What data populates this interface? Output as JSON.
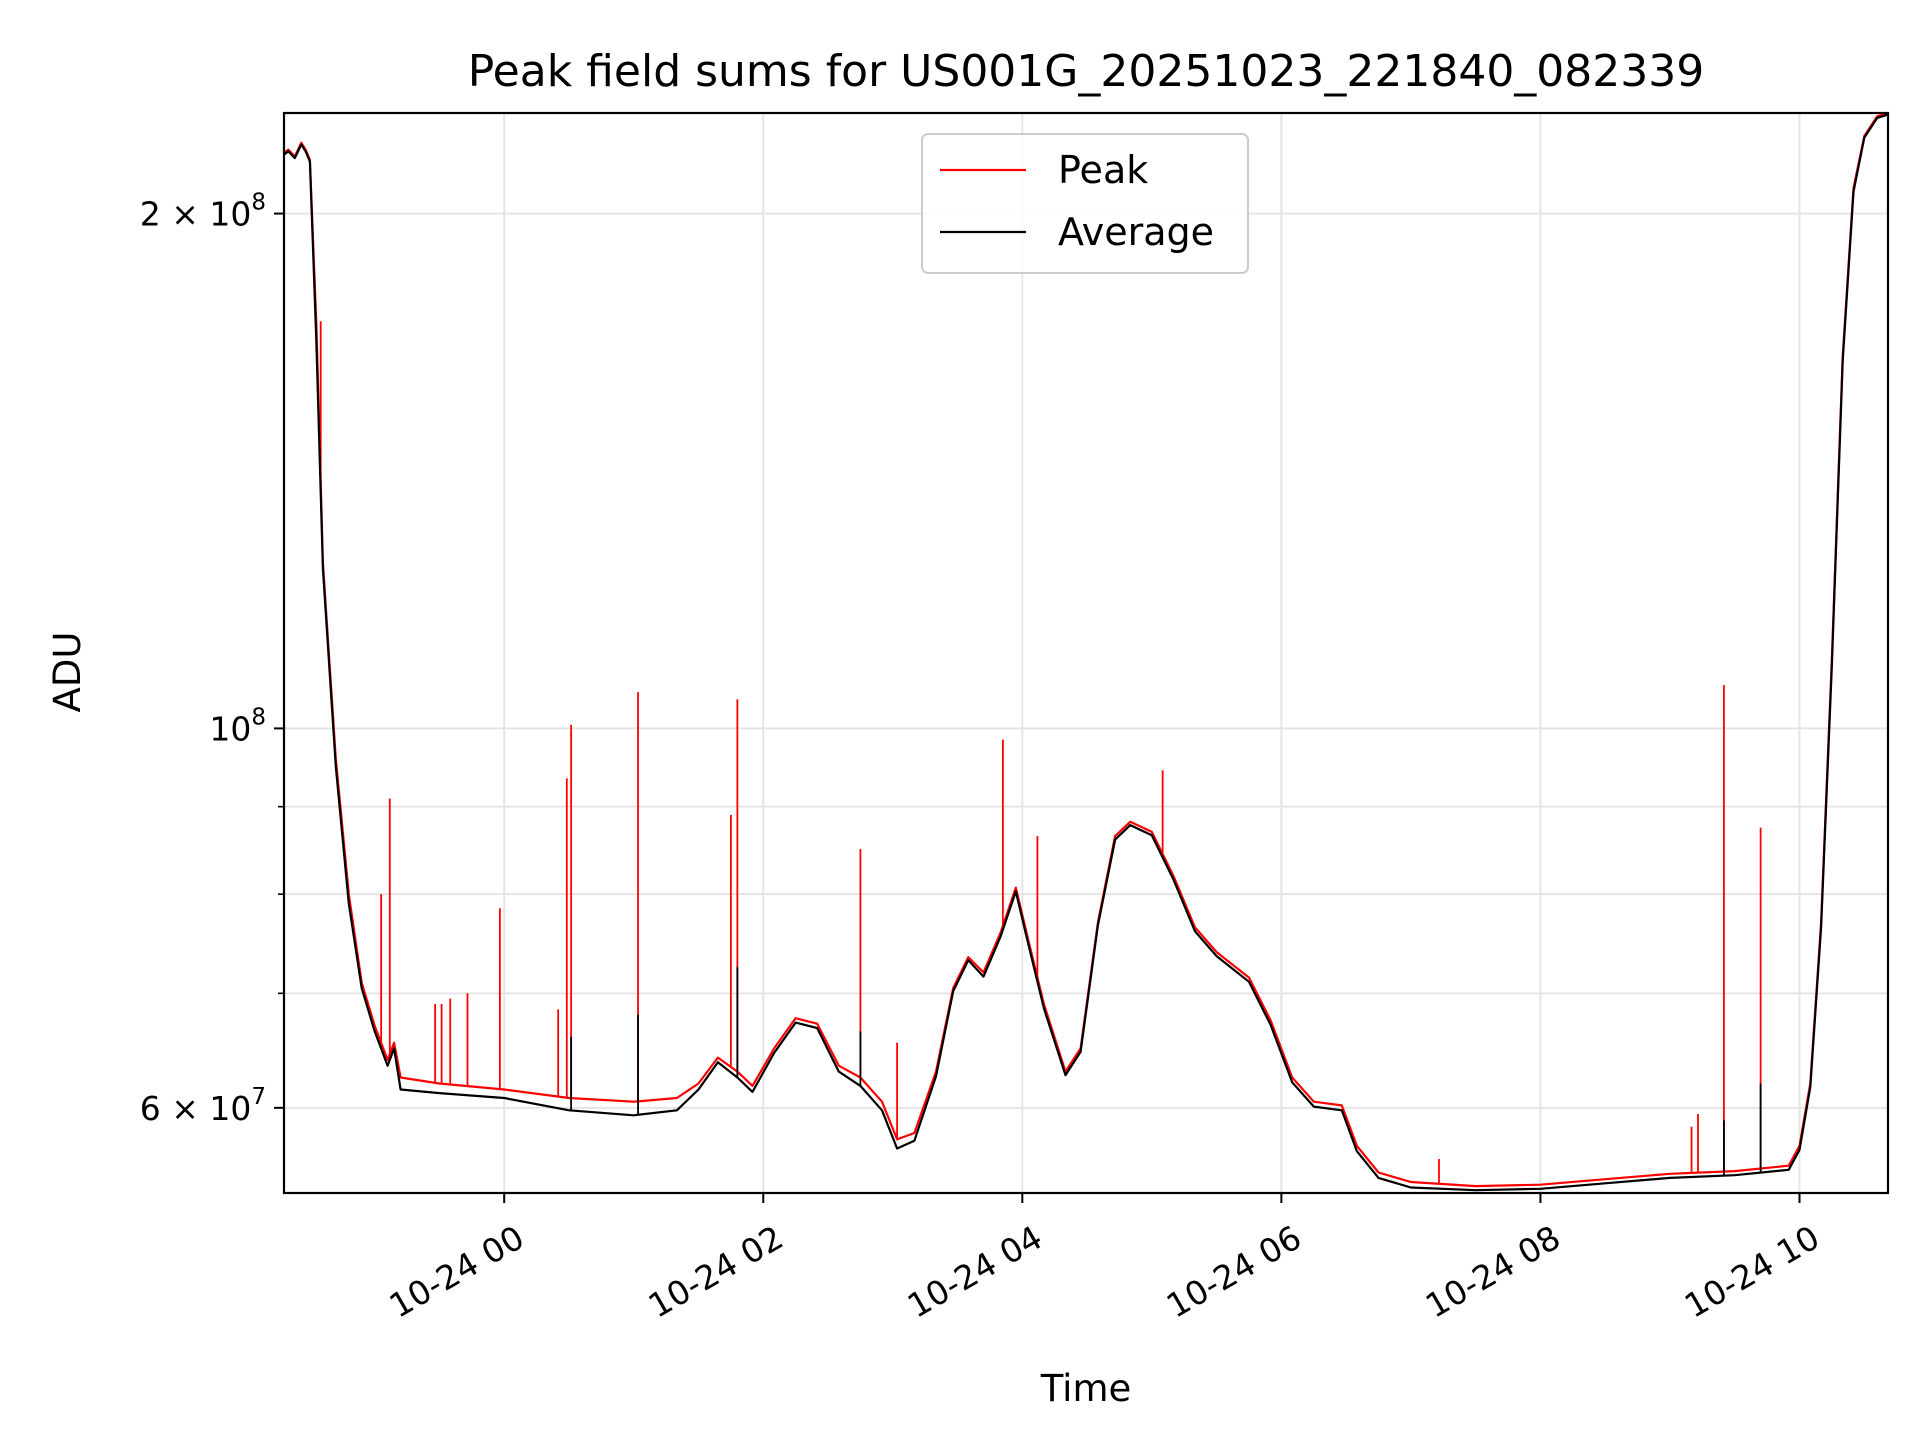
{
  "chart_data": {
    "type": "line",
    "title": "Peak field sums for US001G_20251023_221840_082339",
    "xlabel": "Time",
    "ylabel": "ADU",
    "x_type": "datetime",
    "xlim": [
      "2025-10-23 22:18",
      "2025-10-24 10:41"
    ],
    "ylim": [
      53500000,
      229000000
    ],
    "y_scale": "log",
    "grid": true,
    "legend_position": "upper center",
    "x_ticks": [
      {
        "value": "2025-10-24 00:00",
        "label": "10-24 00"
      },
      {
        "value": "2025-10-24 02:00",
        "label": "10-24 02"
      },
      {
        "value": "2025-10-24 04:00",
        "label": "10-24 04"
      },
      {
        "value": "2025-10-24 06:00",
        "label": "10-24 06"
      },
      {
        "value": "2025-10-24 08:00",
        "label": "10-24 08"
      },
      {
        "value": "2025-10-24 10:00",
        "label": "10-24 10"
      }
    ],
    "y_ticks_major": [
      {
        "value": 60000000,
        "label_base": "6 × 10",
        "label_exp": "7"
      },
      {
        "value": 100000000,
        "label_base": "10",
        "label_exp": "8"
      },
      {
        "value": 200000000,
        "label_base": "2 × 10",
        "label_exp": "8"
      }
    ],
    "y_minor_gridlines": [
      70000000,
      80000000,
      90000000
    ],
    "series": [
      {
        "name": "Peak",
        "color": "#ff0000",
        "points": [
          [
            "2025-10-23 22:18",
            217000000
          ],
          [
            "2025-10-23 22:20",
            218000000
          ],
          [
            "2025-10-23 22:23",
            216000000
          ],
          [
            "2025-10-23 22:26",
            220000000
          ],
          [
            "2025-10-23 22:28",
            218000000
          ],
          [
            "2025-10-23 22:30",
            215000000
          ],
          [
            "2025-10-23 22:33",
            172000000
          ],
          [
            "2025-10-23 22:36",
            125000000
          ],
          [
            "2025-10-23 22:42",
            96000000
          ],
          [
            "2025-10-23 22:48",
            80000000
          ],
          [
            "2025-10-23 22:54",
            71000000
          ],
          [
            "2025-10-23 23:00",
            67000000
          ],
          [
            "2025-10-23 23:06",
            64000000
          ],
          [
            "2025-10-23 23:09",
            65500000
          ],
          [
            "2025-10-23 23:12",
            62500000
          ],
          [
            "2025-10-23 23:30",
            62000000
          ],
          [
            "2025-10-24 00:00",
            61500000
          ],
          [
            "2025-10-24 00:30",
            60800000
          ],
          [
            "2025-10-24 01:00",
            60500000
          ],
          [
            "2025-10-24 01:20",
            60800000
          ],
          [
            "2025-10-24 01:30",
            62000000
          ],
          [
            "2025-10-24 01:39",
            64200000
          ],
          [
            "2025-10-24 01:48",
            63000000
          ],
          [
            "2025-10-24 01:55",
            61800000
          ],
          [
            "2025-10-24 02:05",
            65000000
          ],
          [
            "2025-10-24 02:15",
            67700000
          ],
          [
            "2025-10-24 02:25",
            67200000
          ],
          [
            "2025-10-24 02:35",
            63500000
          ],
          [
            "2025-10-24 02:45",
            62500000
          ],
          [
            "2025-10-24 02:55",
            60500000
          ],
          [
            "2025-10-24 03:02",
            57500000
          ],
          [
            "2025-10-24 03:10",
            58000000
          ],
          [
            "2025-10-24 03:20",
            63000000
          ],
          [
            "2025-10-24 03:28",
            70500000
          ],
          [
            "2025-10-24 03:35",
            73500000
          ],
          [
            "2025-10-24 03:42",
            72000000
          ],
          [
            "2025-10-24 03:50",
            76000000
          ],
          [
            "2025-10-24 03:57",
            80700000
          ],
          [
            "2025-10-24 04:03",
            75000000
          ],
          [
            "2025-10-24 04:10",
            69000000
          ],
          [
            "2025-10-24 04:20",
            63000000
          ],
          [
            "2025-10-24 04:27",
            65000000
          ],
          [
            "2025-10-24 04:35",
            77000000
          ],
          [
            "2025-10-24 04:43",
            86500000
          ],
          [
            "2025-10-24 04:50",
            88200000
          ],
          [
            "2025-10-24 05:00",
            87000000
          ],
          [
            "2025-10-24 05:10",
            82000000
          ],
          [
            "2025-10-24 05:20",
            76500000
          ],
          [
            "2025-10-24 05:30",
            74000000
          ],
          [
            "2025-10-24 05:45",
            71500000
          ],
          [
            "2025-10-24 05:55",
            67500000
          ],
          [
            "2025-10-24 06:05",
            62500000
          ],
          [
            "2025-10-24 06:15",
            60500000
          ],
          [
            "2025-10-24 06:28",
            60200000
          ],
          [
            "2025-10-24 06:35",
            57000000
          ],
          [
            "2025-10-24 06:45",
            55000000
          ],
          [
            "2025-10-24 07:00",
            54300000
          ],
          [
            "2025-10-24 07:30",
            54000000
          ],
          [
            "2025-10-24 08:00",
            54100000
          ],
          [
            "2025-10-24 08:30",
            54500000
          ],
          [
            "2025-10-24 09:00",
            54900000
          ],
          [
            "2025-10-24 09:30",
            55100000
          ],
          [
            "2025-10-24 09:55",
            55500000
          ],
          [
            "2025-10-24 10:00",
            57000000
          ],
          [
            "2025-10-24 10:05",
            62000000
          ],
          [
            "2025-10-24 10:10",
            77000000
          ],
          [
            "2025-10-24 10:15",
            110000000
          ],
          [
            "2025-10-24 10:20",
            165000000
          ],
          [
            "2025-10-24 10:25",
            207000000
          ],
          [
            "2025-10-24 10:30",
            222000000
          ],
          [
            "2025-10-24 10:36",
            228000000
          ],
          [
            "2025-10-24 10:41",
            229000000
          ]
        ],
        "spikes": [
          [
            "2025-10-23 22:35",
            173000000
          ],
          [
            "2025-10-23 23:07",
            91000000
          ],
          [
            "2025-10-23 23:03",
            80000000
          ],
          [
            "2025-10-23 23:28",
            69000000
          ],
          [
            "2025-10-23 23:31",
            69000000
          ],
          [
            "2025-10-23 23:35",
            69500000
          ],
          [
            "2025-10-23 23:43",
            70000000
          ],
          [
            "2025-10-23 23:58",
            78500000
          ],
          [
            "2025-10-24 00:25",
            68500000
          ],
          [
            "2025-10-24 00:29",
            93500000
          ],
          [
            "2025-10-24 00:31",
            100500000
          ],
          [
            "2025-10-24 01:02",
            105000000
          ],
          [
            "2025-10-24 01:45",
            89000000
          ],
          [
            "2025-10-24 01:48",
            104000000
          ],
          [
            "2025-10-24 02:45",
            85000000
          ],
          [
            "2025-10-24 03:02",
            65500000
          ],
          [
            "2025-10-24 03:51",
            98500000
          ],
          [
            "2025-10-24 04:07",
            86500000
          ],
          [
            "2025-10-24 05:05",
            94500000
          ],
          [
            "2025-10-24 07:13",
            56000000
          ],
          [
            "2025-10-24 09:10",
            58500000
          ],
          [
            "2025-10-24 09:13",
            59500000
          ],
          [
            "2025-10-24 09:25",
            106000000
          ],
          [
            "2025-10-24 09:42",
            87500000
          ]
        ]
      },
      {
        "name": "Average",
        "color": "#000000",
        "points": [
          [
            "2025-10-23 22:18",
            216500000
          ],
          [
            "2025-10-23 22:20",
            217500000
          ],
          [
            "2025-10-23 22:23",
            215500000
          ],
          [
            "2025-10-23 22:26",
            219500000
          ],
          [
            "2025-10-23 22:28",
            217500000
          ],
          [
            "2025-10-23 22:30",
            214500000
          ],
          [
            "2025-10-23 22:33",
            168000000
          ],
          [
            "2025-10-23 22:36",
            124000000
          ],
          [
            "2025-10-23 22:42",
            95000000
          ],
          [
            "2025-10-23 22:48",
            79000000
          ],
          [
            "2025-10-23 22:54",
            70500000
          ],
          [
            "2025-10-23 23:00",
            66500000
          ],
          [
            "2025-10-23 23:06",
            63500000
          ],
          [
            "2025-10-23 23:09",
            65000000
          ],
          [
            "2025-10-23 23:12",
            61500000
          ],
          [
            "2025-10-23 23:30",
            61200000
          ],
          [
            "2025-10-24 00:00",
            60800000
          ],
          [
            "2025-10-24 00:30",
            59800000
          ],
          [
            "2025-10-24 01:00",
            59400000
          ],
          [
            "2025-10-24 01:20",
            59800000
          ],
          [
            "2025-10-24 01:30",
            61500000
          ],
          [
            "2025-10-24 01:39",
            63800000
          ],
          [
            "2025-10-24 01:48",
            62500000
          ],
          [
            "2025-10-24 01:55",
            61300000
          ],
          [
            "2025-10-24 02:05",
            64600000
          ],
          [
            "2025-10-24 02:15",
            67300000
          ],
          [
            "2025-10-24 02:25",
            66800000
          ],
          [
            "2025-10-24 02:35",
            63000000
          ],
          [
            "2025-10-24 02:45",
            61800000
          ],
          [
            "2025-10-24 02:55",
            59800000
          ],
          [
            "2025-10-24 03:02",
            56800000
          ],
          [
            "2025-10-24 03:10",
            57400000
          ],
          [
            "2025-10-24 03:20",
            62600000
          ],
          [
            "2025-10-24 03:28",
            70200000
          ],
          [
            "2025-10-24 03:35",
            73200000
          ],
          [
            "2025-10-24 03:42",
            71600000
          ],
          [
            "2025-10-24 03:50",
            75600000
          ],
          [
            "2025-10-24 03:57",
            80300000
          ],
          [
            "2025-10-24 04:03",
            74600000
          ],
          [
            "2025-10-24 04:10",
            68600000
          ],
          [
            "2025-10-24 04:20",
            62700000
          ],
          [
            "2025-10-24 04:27",
            64700000
          ],
          [
            "2025-10-24 04:35",
            76700000
          ],
          [
            "2025-10-24 04:43",
            86100000
          ],
          [
            "2025-10-24 04:50",
            87800000
          ],
          [
            "2025-10-24 05:00",
            86600000
          ],
          [
            "2025-10-24 05:10",
            81600000
          ],
          [
            "2025-10-24 05:20",
            76100000
          ],
          [
            "2025-10-24 05:30",
            73600000
          ],
          [
            "2025-10-24 05:45",
            71100000
          ],
          [
            "2025-10-24 05:55",
            67100000
          ],
          [
            "2025-10-24 06:05",
            62100000
          ],
          [
            "2025-10-24 06:15",
            60100000
          ],
          [
            "2025-10-24 06:28",
            59800000
          ],
          [
            "2025-10-24 06:35",
            56600000
          ],
          [
            "2025-10-24 06:45",
            54600000
          ],
          [
            "2025-10-24 07:00",
            53900000
          ],
          [
            "2025-10-24 07:30",
            53700000
          ],
          [
            "2025-10-24 08:00",
            53800000
          ],
          [
            "2025-10-24 08:30",
            54200000
          ],
          [
            "2025-10-24 09:00",
            54600000
          ],
          [
            "2025-10-24 09:30",
            54800000
          ],
          [
            "2025-10-24 09:55",
            55200000
          ],
          [
            "2025-10-24 10:00",
            56700000
          ],
          [
            "2025-10-24 10:05",
            61700000
          ],
          [
            "2025-10-24 10:10",
            76500000
          ],
          [
            "2025-10-24 10:15",
            109000000
          ],
          [
            "2025-10-24 10:20",
            164000000
          ],
          [
            "2025-10-24 10:25",
            206000000
          ],
          [
            "2025-10-24 10:30",
            221500000
          ],
          [
            "2025-10-24 10:36",
            227500000
          ],
          [
            "2025-10-24 10:41",
            228500000
          ]
        ],
        "spikes": [
          [
            "2025-10-24 00:31",
            66000000
          ],
          [
            "2025-10-24 01:02",
            68000000
          ],
          [
            "2025-10-24 01:48",
            72500000
          ],
          [
            "2025-10-24 02:45",
            66500000
          ],
          [
            "2025-10-24 09:25",
            59000000
          ],
          [
            "2025-10-24 09:42",
            62000000
          ]
        ]
      }
    ]
  }
}
